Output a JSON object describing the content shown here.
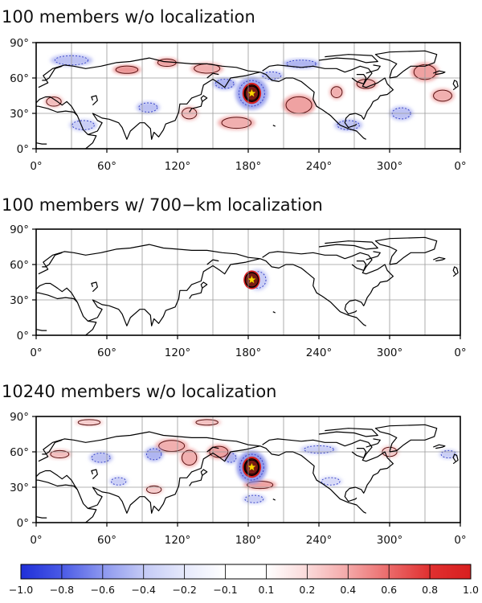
{
  "colors": {
    "negative": "#1f2fd8",
    "positive": "#d81f1f",
    "star": "#ffd700",
    "center": "#7a1a12"
  },
  "chart_data": [
    {
      "type": "heatmap",
      "title": "100 members w/o localization",
      "xticks": [
        "0°",
        "60°",
        "120°",
        "180°",
        "240°",
        "300°",
        "0°"
      ],
      "yticks": [
        "0°",
        "30°",
        "60°",
        "90°"
      ],
      "xlim": [
        0,
        360
      ],
      "ylim": [
        0,
        90
      ],
      "grid": true,
      "marker": {
        "lon": 183,
        "lat": 47
      },
      "blobs": [
        {
          "lon": 183,
          "lat": 47,
          "rlon": 8,
          "rlat": 9,
          "value": 1.0
        },
        {
          "lon": 183,
          "lat": 47,
          "rlon": 14,
          "rlat": 14,
          "value": -0.35
        },
        {
          "lon": 223,
          "lat": 37,
          "rlon": 14,
          "rlat": 9,
          "value": 0.35
        },
        {
          "lon": 170,
          "lat": 22,
          "rlon": 16,
          "rlat": 6,
          "value": 0.3
        },
        {
          "lon": 77,
          "lat": 67,
          "rlon": 12,
          "rlat": 4,
          "value": 0.4
        },
        {
          "lon": 111,
          "lat": 73,
          "rlon": 10,
          "rlat": 4,
          "value": 0.35
        },
        {
          "lon": 145,
          "lat": 68,
          "rlon": 14,
          "rlat": 5,
          "value": 0.3
        },
        {
          "lon": 160,
          "lat": 55,
          "rlon": 10,
          "rlat": 5,
          "value": -0.3
        },
        {
          "lon": 30,
          "lat": 75,
          "rlon": 18,
          "rlat": 5,
          "value": -0.25
        },
        {
          "lon": 225,
          "lat": 72,
          "rlon": 16,
          "rlat": 4,
          "value": -0.3
        },
        {
          "lon": 330,
          "lat": 65,
          "rlon": 12,
          "rlat": 8,
          "value": 0.35
        },
        {
          "lon": 345,
          "lat": 45,
          "rlon": 10,
          "rlat": 6,
          "value": 0.3
        },
        {
          "lon": 280,
          "lat": 55,
          "rlon": 10,
          "rlat": 5,
          "value": 0.3
        },
        {
          "lon": 265,
          "lat": 20,
          "rlon": 12,
          "rlat": 5,
          "value": -0.25
        },
        {
          "lon": 310,
          "lat": 30,
          "rlon": 10,
          "rlat": 6,
          "value": -0.25
        },
        {
          "lon": 95,
          "lat": 35,
          "rlon": 10,
          "rlat": 5,
          "value": -0.25
        },
        {
          "lon": 130,
          "lat": 30,
          "rlon": 8,
          "rlat": 6,
          "value": 0.25
        },
        {
          "lon": 40,
          "lat": 20,
          "rlon": 12,
          "rlat": 5,
          "value": -0.2
        },
        {
          "lon": 15,
          "lat": 40,
          "rlon": 8,
          "rlat": 5,
          "value": 0.25
        },
        {
          "lon": 255,
          "lat": 48,
          "rlon": 6,
          "rlat": 6,
          "value": 0.3
        },
        {
          "lon": 200,
          "lat": 62,
          "rlon": 10,
          "rlat": 4,
          "value": -0.25
        }
      ]
    },
    {
      "type": "heatmap",
      "title": "100 members w/ 700−km localization",
      "xticks": [
        "0°",
        "60°",
        "120°",
        "180°",
        "240°",
        "300°",
        "0°"
      ],
      "yticks": [
        "0°",
        "30°",
        "60°",
        "90°"
      ],
      "xlim": [
        0,
        360
      ],
      "ylim": [
        0,
        90
      ],
      "grid": true,
      "marker": {
        "lon": 183,
        "lat": 47
      },
      "blobs": [
        {
          "lon": 183,
          "lat": 47,
          "rlon": 7,
          "rlat": 8,
          "value": 1.0
        },
        {
          "lon": 188,
          "lat": 47,
          "rlon": 9,
          "rlat": 9,
          "value": -0.2
        }
      ]
    },
    {
      "type": "heatmap",
      "title": "10240 members w/o localization",
      "xticks": [
        "0°",
        "60°",
        "120°",
        "180°",
        "240°",
        "300°",
        "0°"
      ],
      "yticks": [
        "0°",
        "30°",
        "60°",
        "90°"
      ],
      "xlim": [
        0,
        360
      ],
      "ylim": [
        0,
        90
      ],
      "grid": true,
      "marker": {
        "lon": 183,
        "lat": 47
      },
      "blobs": [
        {
          "lon": 183,
          "lat": 47,
          "rlon": 8,
          "rlat": 9,
          "value": 1.0
        },
        {
          "lon": 183,
          "lat": 47,
          "rlon": 13,
          "rlat": 14,
          "value": -0.4
        },
        {
          "lon": 190,
          "lat": 32,
          "rlon": 14,
          "rlat": 4,
          "value": 0.35
        },
        {
          "lon": 185,
          "lat": 20,
          "rlon": 10,
          "rlat": 4,
          "value": -0.2
        },
        {
          "lon": 115,
          "lat": 65,
          "rlon": 14,
          "rlat": 6,
          "value": 0.3
        },
        {
          "lon": 130,
          "lat": 55,
          "rlon": 8,
          "rlat": 8,
          "value": 0.3
        },
        {
          "lon": 155,
          "lat": 60,
          "rlon": 10,
          "rlat": 6,
          "value": 0.35
        },
        {
          "lon": 165,
          "lat": 55,
          "rlon": 6,
          "rlat": 5,
          "value": -0.3
        },
        {
          "lon": 100,
          "lat": 58,
          "rlon": 8,
          "rlat": 6,
          "value": -0.3
        },
        {
          "lon": 55,
          "lat": 55,
          "rlon": 10,
          "rlat": 5,
          "value": -0.25
        },
        {
          "lon": 20,
          "lat": 58,
          "rlon": 10,
          "rlat": 4,
          "value": 0.25
        },
        {
          "lon": 145,
          "lat": 85,
          "rlon": 12,
          "rlat": 3,
          "value": 0.25
        },
        {
          "lon": 45,
          "lat": 85,
          "rlon": 12,
          "rlat": 3,
          "value": 0.2
        },
        {
          "lon": 240,
          "lat": 62,
          "rlon": 16,
          "rlat": 4,
          "value": -0.2
        },
        {
          "lon": 300,
          "lat": 60,
          "rlon": 8,
          "rlat": 5,
          "value": 0.2
        },
        {
          "lon": 250,
          "lat": 35,
          "rlon": 10,
          "rlat": 4,
          "value": -0.15
        },
        {
          "lon": 100,
          "lat": 28,
          "rlon": 8,
          "rlat": 4,
          "value": 0.2
        },
        {
          "lon": 70,
          "lat": 35,
          "rlon": 8,
          "rlat": 4,
          "value": -0.2
        },
        {
          "lon": 350,
          "lat": 58,
          "rlon": 8,
          "rlat": 4,
          "value": -0.2
        }
      ]
    }
  ],
  "colorbar": {
    "ticks": [
      "−1.0",
      "−0.8",
      "−0.6",
      "−0.4",
      "−0.2",
      "−0.1",
      "0.1",
      "0.2",
      "0.4",
      "0.6",
      "0.8",
      "1.0"
    ],
    "levels": [
      -1.0,
      -0.8,
      -0.6,
      -0.4,
      -0.2,
      -0.1,
      0.1,
      0.2,
      0.4,
      0.6,
      0.8,
      1.0
    ]
  }
}
